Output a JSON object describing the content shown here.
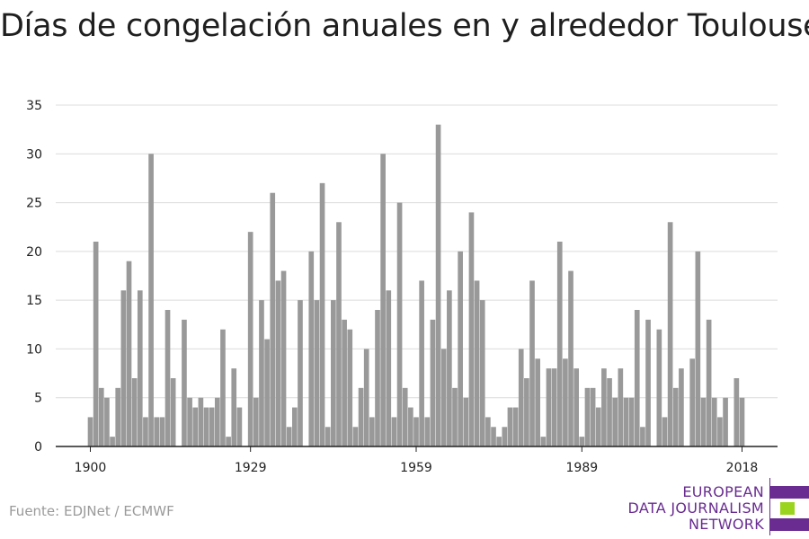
{
  "page": {
    "title": "Días de congelación anuales en y alrededor Toulouse",
    "source": "Fuente: EDJNet / ECMWF",
    "logo_lines": [
      "EUROPEAN",
      "DATA JOURNALISM",
      "NETWORK"
    ],
    "logo_colors": {
      "purple": "#6a2c91",
      "green": "#9bd41e"
    }
  },
  "chart_data": {
    "type": "bar",
    "title": "Días de congelación anuales en y alrededor Toulouse",
    "xlabel": "",
    "ylabel": "",
    "x_start": 1900,
    "x_end": 2018,
    "xticks": [
      1900,
      1929,
      1959,
      1989,
      2018
    ],
    "ylim": [
      0,
      35
    ],
    "yticks": [
      0,
      5,
      10,
      15,
      20,
      25,
      30,
      35
    ],
    "grid": true,
    "bar_color": "#999999",
    "values": [
      3,
      21,
      6,
      5,
      1,
      6,
      16,
      19,
      7,
      16,
      3,
      30,
      3,
      3,
      14,
      7,
      0,
      13,
      5,
      4,
      5,
      4,
      4,
      5,
      12,
      1,
      8,
      4,
      0,
      22,
      5,
      15,
      11,
      26,
      17,
      18,
      2,
      4,
      15,
      0,
      20,
      15,
      27,
      2,
      15,
      23,
      13,
      12,
      2,
      6,
      10,
      3,
      14,
      30,
      16,
      3,
      25,
      6,
      4,
      3,
      17,
      3,
      13,
      33,
      10,
      16,
      6,
      20,
      5,
      24,
      17,
      15,
      3,
      2,
      1,
      2,
      4,
      4,
      10,
      7,
      17,
      9,
      1,
      8,
      8,
      21,
      9,
      18,
      8,
      1,
      6,
      6,
      4,
      8,
      7,
      5,
      8,
      5,
      5,
      14,
      2,
      13,
      0,
      12,
      3,
      23,
      6,
      8,
      0,
      9,
      20,
      5,
      13,
      5,
      3,
      5,
      0,
      7,
      5
    ]
  }
}
